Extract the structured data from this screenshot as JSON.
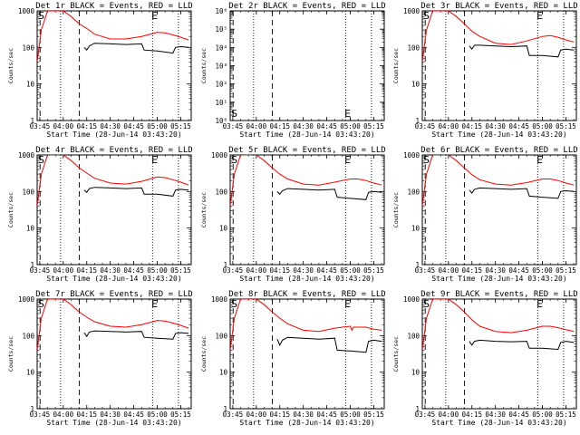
{
  "chart_data": [
    {
      "type": "line",
      "title": "Det 1r BLACK = Events, RED = LLD",
      "ylabel": "Counts/sec",
      "xlabel": "Start Time (28-Jun-14 03:43:20)",
      "y_scale": "log",
      "ylim": [
        1,
        1000
      ],
      "ytick_labels": [
        "1",
        "10",
        "100",
        "1000"
      ],
      "xlim": [
        "03:43:20",
        "05:21:40"
      ],
      "xtick_labels": [
        "03:45",
        "04:00",
        "04:15",
        "04:30",
        "04:45",
        "05:00",
        "05:15"
      ],
      "markers": [
        "S",
        "E"
      ],
      "series": [
        {
          "color": "#ff0000",
          "x": [
            "03:43:20",
            "03:46:00",
            "03:50:00",
            "04:00:00",
            "04:05:00",
            "04:10:00",
            "04:15:00",
            "04:20:00",
            "04:30:00",
            "04:40:00",
            "04:50:00",
            "05:00:00",
            "05:05:00",
            "05:10:00",
            "05:15:00",
            "05:20:00"
          ],
          "y": [
            40,
            300,
            1000,
            1000,
            700,
            450,
            330,
            230,
            170,
            170,
            200,
            260,
            250,
            220,
            190,
            160
          ]
        },
        {
          "color": "#000000",
          "x": [
            "04:13:20",
            "04:15:00",
            "04:16:40",
            "04:20:00",
            "04:30:00",
            "04:40:00",
            "04:50:00",
            "04:51:40",
            "05:00:00",
            "05:10:00",
            "05:11:40",
            "05:15:00",
            "05:20:00"
          ],
          "y": [
            100,
            85,
            110,
            130,
            125,
            120,
            125,
            85,
            80,
            70,
            100,
            105,
            100
          ]
        }
      ]
    },
    {
      "type": "line",
      "title": "Det 2r BLACK = Events, RED = LLD",
      "ylabel": "Counts/sec",
      "xlabel": "Start Time (28-Jun-14 03:43:20)",
      "y_scale": "log",
      "ylim": [
        1,
        1000000
      ],
      "ytick_labels": [
        "10⁰",
        "10¹",
        "10²",
        "10³",
        "10⁴",
        "10⁵",
        "10⁶"
      ],
      "xlim": [
        "03:43:20",
        "05:21:40"
      ],
      "xtick_labels": [
        "03:45",
        "04:00",
        "04:15",
        "04:30",
        "04:45",
        "05:00",
        "05:15"
      ],
      "markers": [
        "S",
        "E"
      ],
      "series": []
    },
    {
      "type": "line",
      "title": "Det 3r BLACK = Events, RED = LLD",
      "ylabel": "Counts/sec",
      "xlabel": "Start Time (28-Jun-14 03:43:20)",
      "y_scale": "log",
      "ylim": [
        1,
        1000
      ],
      "ytick_labels": [
        "1",
        "10",
        "100",
        "1000"
      ],
      "xlim": [
        "03:43:20",
        "05:21:40"
      ],
      "xtick_labels": [
        "03:45",
        "04:00",
        "04:15",
        "04:30",
        "04:45",
        "05:00",
        "05:15"
      ],
      "markers": [
        "S",
        "E"
      ],
      "series": [
        {
          "color": "#ff0000",
          "x": [
            "03:43:20",
            "03:46:00",
            "03:50:00",
            "04:00:00",
            "04:05:00",
            "04:10:00",
            "04:15:00",
            "04:20:00",
            "04:30:00",
            "04:40:00",
            "04:50:00",
            "05:00:00",
            "05:05:00",
            "05:10:00",
            "05:15:00",
            "05:20:00"
          ],
          "y": [
            40,
            300,
            1000,
            1000,
            700,
            450,
            280,
            200,
            130,
            120,
            150,
            200,
            210,
            190,
            160,
            140
          ]
        },
        {
          "color": "#000000",
          "x": [
            "04:13:20",
            "04:15:00",
            "04:16:40",
            "04:20:00",
            "04:30:00",
            "04:40:00",
            "04:50:00",
            "04:51:40",
            "05:00:00",
            "05:10:00",
            "05:11:40",
            "05:15:00",
            "05:20:00"
          ],
          "y": [
            110,
            90,
            115,
            115,
            110,
            105,
            110,
            60,
            60,
            55,
            85,
            90,
            85
          ]
        }
      ]
    },
    {
      "type": "line",
      "title": "Det 4r BLACK = Events, RED = LLD",
      "ylabel": "Counts/sec",
      "xlabel": "Start Time (28-Jun-14 03:43:20)",
      "y_scale": "log",
      "ylim": [
        1,
        1000
      ],
      "ytick_labels": [
        "1",
        "10",
        "100",
        "1000"
      ],
      "xlim": [
        "03:43:20",
        "05:21:40"
      ],
      "xtick_labels": [
        "03:45",
        "04:00",
        "04:15",
        "04:30",
        "04:45",
        "05:00",
        "05:15"
      ],
      "markers": [
        "S",
        "E"
      ],
      "series": [
        {
          "color": "#ff0000",
          "x": [
            "03:43:20",
            "03:46:00",
            "03:50:00",
            "04:00:00",
            "04:05:00",
            "04:10:00",
            "04:15:00",
            "04:20:00",
            "04:30:00",
            "04:40:00",
            "04:50:00",
            "05:00:00",
            "05:05:00",
            "05:10:00",
            "05:15:00",
            "05:20:00"
          ],
          "y": [
            40,
            300,
            1000,
            1000,
            700,
            450,
            320,
            230,
            170,
            160,
            190,
            250,
            240,
            210,
            180,
            150
          ]
        },
        {
          "color": "#000000",
          "x": [
            "04:13:20",
            "04:15:00",
            "04:16:40",
            "04:20:00",
            "04:30:00",
            "04:40:00",
            "04:50:00",
            "04:51:40",
            "05:00:00",
            "05:10:00",
            "05:11:40",
            "05:15:00",
            "05:20:00"
          ],
          "y": [
            110,
            95,
            120,
            130,
            125,
            120,
            125,
            85,
            85,
            75,
            110,
            115,
            110
          ]
        }
      ]
    },
    {
      "type": "line",
      "title": "Det 5r BLACK = Events, RED = LLD",
      "ylabel": "Counts/sec",
      "xlabel": "Start Time (28-Jun-14 03:43:20)",
      "y_scale": "log",
      "ylim": [
        1,
        1000
      ],
      "ytick_labels": [
        "1",
        "10",
        "100",
        "1000"
      ],
      "xlim": [
        "03:43:20",
        "05:21:40"
      ],
      "xtick_labels": [
        "03:45",
        "04:00",
        "04:15",
        "04:30",
        "04:45",
        "05:00",
        "05:15"
      ],
      "markers": [
        "S",
        "E"
      ],
      "series": [
        {
          "color": "#ff0000",
          "x": [
            "03:43:20",
            "03:46:00",
            "03:50:00",
            "04:00:00",
            "04:05:00",
            "04:10:00",
            "04:15:00",
            "04:20:00",
            "04:30:00",
            "04:40:00",
            "04:50:00",
            "05:00:00",
            "05:05:00",
            "05:10:00",
            "05:15:00",
            "05:20:00"
          ],
          "y": [
            40,
            300,
            1000,
            1000,
            700,
            450,
            300,
            220,
            160,
            150,
            180,
            220,
            220,
            200,
            170,
            150
          ]
        },
        {
          "color": "#000000",
          "x": [
            "04:13:20",
            "04:15:00",
            "04:16:40",
            "04:20:00",
            "04:30:00",
            "04:40:00",
            "04:50:00",
            "04:51:40",
            "05:00:00",
            "05:10:00",
            "05:11:40",
            "05:15:00",
            "05:20:00"
          ],
          "y": [
            100,
            85,
            105,
            120,
            115,
            110,
            115,
            70,
            65,
            60,
            95,
            100,
            95
          ]
        }
      ]
    },
    {
      "type": "line",
      "title": "Det 6r BLACK = Events, RED = LLD",
      "ylabel": "Counts/sec",
      "xlabel": "Start Time (28-Jun-14 03:43:20)",
      "y_scale": "log",
      "ylim": [
        1,
        1000
      ],
      "ytick_labels": [
        "1",
        "10",
        "100",
        "1000"
      ],
      "xlim": [
        "03:43:20",
        "05:21:40"
      ],
      "xtick_labels": [
        "03:45",
        "04:00",
        "04:15",
        "04:30",
        "04:45",
        "05:00",
        "05:15"
      ],
      "markers": [
        "S",
        "E"
      ],
      "series": [
        {
          "color": "#ff0000",
          "x": [
            "03:43:20",
            "03:46:00",
            "03:50:00",
            "04:00:00",
            "04:05:00",
            "04:10:00",
            "04:15:00",
            "04:20:00",
            "04:30:00",
            "04:40:00",
            "04:50:00",
            "05:00:00",
            "05:05:00",
            "05:10:00",
            "05:15:00",
            "05:20:00"
          ],
          "y": [
            40,
            300,
            1000,
            1000,
            700,
            450,
            290,
            210,
            160,
            150,
            175,
            220,
            220,
            200,
            170,
            150
          ]
        },
        {
          "color": "#000000",
          "x": [
            "04:13:20",
            "04:15:00",
            "04:16:40",
            "04:20:00",
            "04:30:00",
            "04:40:00",
            "04:50:00",
            "04:51:40",
            "05:00:00",
            "05:10:00",
            "05:11:40",
            "05:15:00",
            "05:20:00"
          ],
          "y": [
            110,
            90,
            115,
            125,
            120,
            115,
            120,
            75,
            70,
            65,
            100,
            105,
            100
          ]
        }
      ]
    },
    {
      "type": "line",
      "title": "Det 7r BLACK = Events, RED = LLD",
      "ylabel": "Counts/sec",
      "xlabel": "Start Time (28-Jun-14 03:43:20)",
      "y_scale": "log",
      "ylim": [
        1,
        1000
      ],
      "ytick_labels": [
        "1",
        "10",
        "100",
        "1000"
      ],
      "xlim": [
        "03:43:20",
        "05:21:40"
      ],
      "xtick_labels": [
        "03:45",
        "04:00",
        "04:15",
        "04:30",
        "04:45",
        "05:00",
        "05:15"
      ],
      "markers": [
        "S",
        "E"
      ],
      "series": [
        {
          "color": "#ff0000",
          "x": [
            "03:43:20",
            "03:46:00",
            "03:50:00",
            "04:00:00",
            "04:05:00",
            "04:10:00",
            "04:15:00",
            "04:20:00",
            "04:30:00",
            "04:40:00",
            "04:50:00",
            "05:00:00",
            "05:05:00",
            "05:10:00",
            "05:15:00",
            "05:20:00"
          ],
          "y": [
            40,
            300,
            1000,
            1000,
            700,
            450,
            320,
            240,
            180,
            170,
            200,
            260,
            250,
            220,
            190,
            160
          ]
        },
        {
          "color": "#000000",
          "x": [
            "04:13:20",
            "04:15:00",
            "04:16:40",
            "04:20:00",
            "04:30:00",
            "04:40:00",
            "04:50:00",
            "04:51:40",
            "05:00:00",
            "05:10:00",
            "05:11:40",
            "05:15:00",
            "05:20:00"
          ],
          "y": [
            120,
            95,
            125,
            135,
            130,
            125,
            130,
            90,
            85,
            80,
            115,
            120,
            115
          ]
        }
      ]
    },
    {
      "type": "line",
      "title": "Det 8r BLACK = Events, RED = LLD",
      "ylabel": "Counts/sec",
      "xlabel": "Start Time (28-Jun-14 03:43:20)",
      "y_scale": "log",
      "ylim": [
        1,
        1000
      ],
      "ytick_labels": [
        "1",
        "10",
        "100",
        "1000"
      ],
      "xlim": [
        "03:43:20",
        "05:21:40"
      ],
      "xtick_labels": [
        "03:45",
        "04:00",
        "04:15",
        "04:30",
        "04:45",
        "05:00",
        "05:15"
      ],
      "markers": [
        "S",
        "E"
      ],
      "series": [
        {
          "color": "#ff0000",
          "x": [
            "03:43:20",
            "03:46:00",
            "03:50:00",
            "04:00:00",
            "04:05:00",
            "04:10:00",
            "04:15:00",
            "04:20:00",
            "04:30:00",
            "04:40:00",
            "04:50:00",
            "05:00:00",
            "05:01:00",
            "05:02:00",
            "05:10:00",
            "05:15:00",
            "05:20:00"
          ],
          "y": [
            40,
            300,
            1000,
            1000,
            700,
            450,
            300,
            210,
            140,
            130,
            160,
            180,
            140,
            170,
            170,
            150,
            140
          ]
        },
        {
          "color": "#000000",
          "x": [
            "04:13:20",
            "04:15:00",
            "04:16:40",
            "04:20:00",
            "04:30:00",
            "04:40:00",
            "04:50:00",
            "04:51:40",
            "05:00:00",
            "05:10:00",
            "05:11:40",
            "05:15:00",
            "05:20:00"
          ],
          "y": [
            80,
            55,
            75,
            90,
            85,
            80,
            85,
            40,
            38,
            35,
            70,
            75,
            70
          ]
        }
      ]
    },
    {
      "type": "line",
      "title": "Det 9r BLACK = Events, RED = LLD",
      "ylabel": "Counts/sec",
      "xlabel": "Start Time (28-Jun-14 03:43:20)",
      "y_scale": "log",
      "ylim": [
        1,
        1000
      ],
      "ytick_labels": [
        "1",
        "10",
        "100",
        "1000"
      ],
      "xlim": [
        "03:43:20",
        "05:21:40"
      ],
      "xtick_labels": [
        "03:45",
        "04:00",
        "04:15",
        "04:30",
        "04:45",
        "05:00",
        "05:15"
      ],
      "markers": [
        "S",
        "E"
      ],
      "series": [
        {
          "color": "#ff0000",
          "x": [
            "03:43:20",
            "03:46:00",
            "03:50:00",
            "04:00:00",
            "04:05:00",
            "04:10:00",
            "04:15:00",
            "04:20:00",
            "04:30:00",
            "04:40:00",
            "04:50:00",
            "05:00:00",
            "05:05:00",
            "05:10:00",
            "05:15:00",
            "05:20:00"
          ],
          "y": [
            40,
            300,
            1000,
            1000,
            700,
            450,
            270,
            180,
            130,
            120,
            140,
            180,
            180,
            165,
            145,
            130
          ]
        },
        {
          "color": "#000000",
          "x": [
            "04:13:20",
            "04:15:00",
            "04:16:40",
            "04:20:00",
            "04:30:00",
            "04:40:00",
            "04:50:00",
            "04:51:40",
            "05:00:00",
            "05:10:00",
            "05:11:40",
            "05:15:00",
            "05:20:00"
          ],
          "y": [
            70,
            55,
            70,
            75,
            70,
            68,
            70,
            45,
            45,
            42,
            65,
            70,
            65
          ]
        }
      ]
    }
  ]
}
